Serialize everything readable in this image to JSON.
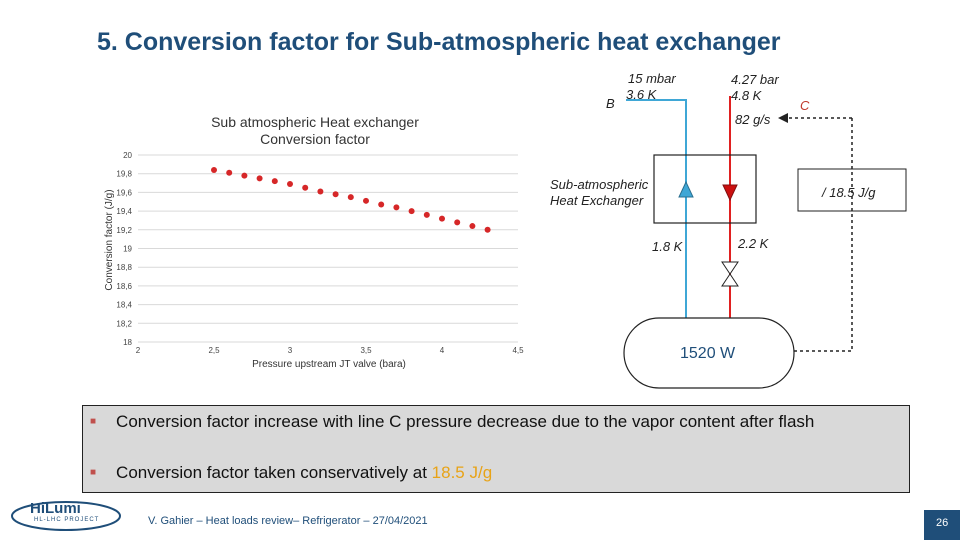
{
  "slide": {
    "title": "5. Conversion factor for Sub-atmospheric heat exchanger",
    "footer": "V. Gahier – Heat loads review– Refrigerator – 27/04/2021",
    "page_number": "26",
    "logo": "HiLumi",
    "logo_sub": "HL-LHC PROJECT"
  },
  "chart_data": {
    "type": "scatter",
    "title": "Sub atmospheric Heat exchanger Conversion factor",
    "xlabel": "Pressure upstream JT valve (bara)",
    "ylabel": "Conversion factor (J/g)",
    "xlim": [
      2,
      4.5
    ],
    "ylim": [
      18,
      20
    ],
    "x_ticks": [
      "2",
      "2,5",
      "3",
      "3,5",
      "4",
      "4,5"
    ],
    "y_ticks": [
      "20",
      "19,8",
      "19,6",
      "19,4",
      "19,2",
      "19",
      "18,8",
      "18,6",
      "18,4",
      "18,2",
      "18"
    ],
    "grid": "horizontal",
    "marker_color": "#d62728",
    "x": [
      2.5,
      2.6,
      2.7,
      2.8,
      2.9,
      3.0,
      3.1,
      3.2,
      3.3,
      3.4,
      3.5,
      3.6,
      3.7,
      3.8,
      3.9,
      4.0,
      4.1,
      4.2,
      4.3
    ],
    "y": [
      19.84,
      19.81,
      19.78,
      19.75,
      19.72,
      19.69,
      19.65,
      19.61,
      19.58,
      19.55,
      19.51,
      19.47,
      19.44,
      19.4,
      19.36,
      19.32,
      19.28,
      19.24,
      19.2
    ]
  },
  "diagram": {
    "label_b": "B",
    "stream_b_pressure": "15 mbar",
    "stream_b_temp": "3.6 K",
    "stream_c_pressure": "4.27 bar",
    "stream_c_temp": "4.8 K",
    "label_c": "C",
    "flow": "82 g/s",
    "hx_label_line1": "Sub-atmospheric",
    "hx_label_line2": "Heat Exchanger",
    "factor_box": "/ 18.5 J/g",
    "temp_cold": "1.8 K",
    "temp_valve": "2.2 K",
    "bath_power": "1520 W",
    "color_blue": "#3fa7d6",
    "color_red": "#e02020"
  },
  "bullets": [
    {
      "text": "Conversion factor increase with line C pressure decrease due to the vapor content after flash",
      "highlight": ""
    },
    {
      "text": "Conversion factor taken conservatively at ",
      "highlight": "18.5 J/g"
    }
  ]
}
